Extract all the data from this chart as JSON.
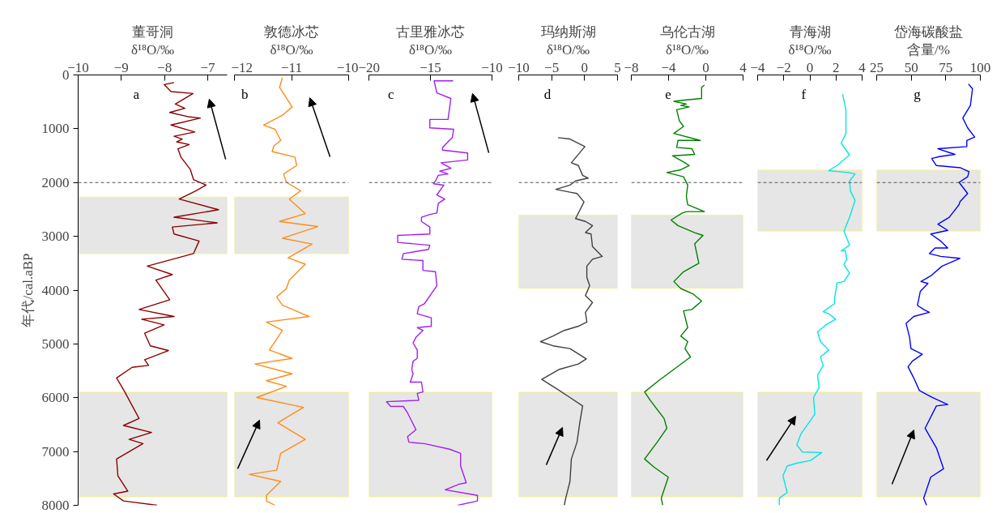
{
  "chart_data": [
    {
      "type": "line",
      "title": "董哥洞",
      "xlabel": "δ¹⁸O/‰",
      "ylabel": "年代/cal.aBP",
      "xlim": [
        -10,
        -6.55
      ],
      "xticks": [
        -10,
        -9,
        -8,
        -7
      ],
      "ylim": [
        8000,
        0
      ],
      "yticks": [
        0,
        1000,
        2000,
        3000,
        4000,
        5000,
        6000,
        7000,
        8000
      ],
      "annotations": [
        "a"
      ],
      "series": [
        {
          "color": "#8b0000",
          "x": [
            -7.78,
            -8.01,
            -7.85,
            -7.34,
            -7.75,
            -7.53,
            -7.88,
            -7.46,
            -7.17,
            -7.85,
            -7.3,
            -7.78,
            -7.59,
            -7.72,
            -7.43,
            -7.69,
            -7.62,
            -7.4,
            -7.33,
            -7.04,
            -7.27,
            -7.66,
            -6.75,
            -7.78,
            -6.78,
            -7.82,
            -7.78,
            -7.2,
            -7.33,
            -8.4,
            -7.82,
            -8.2,
            -7.88,
            -8.59,
            -7.78,
            -8.53,
            -8.01,
            -8.46,
            -8.33,
            -7.91,
            -8.46,
            -8.37,
            -8.75,
            -9.11,
            -8.92,
            -8.59,
            -8.95,
            -8.3,
            -8.82,
            -8.5,
            -9.11,
            -9.08,
            -8.85,
            -9.18,
            -8.95,
            -8.17
          ],
          "values": [
            141,
            178,
            308,
            344,
            541,
            619,
            697,
            775,
            801,
            931,
            1061,
            1139,
            1191,
            1243,
            1294,
            1372,
            1528,
            1762,
            1944,
            2048,
            2152,
            2308,
            2505,
            2645,
            2749,
            2827,
            2957,
            3087,
            3321,
            3554,
            3710,
            3814,
            4178,
            4360,
            4490,
            4541,
            4645,
            4801,
            5035,
            5123,
            5295,
            5399,
            5435,
            5632,
            5892,
            6386,
            6516,
            6646,
            6775,
            6853,
            7139,
            7451,
            7737,
            7789,
            7919,
            8000
          ]
        }
      ],
      "bands": [
        {
          "axis": "y",
          "from": 2270,
          "to": 3320,
          "color": "#e6e6e6"
        },
        {
          "axis": "y",
          "from": 5900,
          "to": 7840,
          "color": "#e6e6e6"
        }
      ],
      "ref_lines": [
        {
          "axis": "y",
          "value": 2000,
          "color": "#555555",
          "line_style": "dashed"
        }
      ]
    },
    {
      "type": "line",
      "title": "敦德冰芯",
      "xlabel": "δ¹⁸O/‰",
      "xlim": [
        -12,
        -10
      ],
      "xticks": [
        -12,
        -11,
        -10
      ],
      "ylim": [
        8000,
        0
      ],
      "tick_labels": "x",
      "annotations": [
        "b"
      ],
      "series": [
        {
          "color": "#ff8c1a",
          "x": [
            -11.16,
            -11.21,
            -10.99,
            -11.16,
            -11.49,
            -11.29,
            -11.19,
            -11.31,
            -11.34,
            -10.94,
            -10.91,
            -11.14,
            -11.09,
            -10.84,
            -11.04,
            -10.76,
            -11.21,
            -10.54,
            -11.16,
            -10.64,
            -11.06,
            -10.76,
            -11.04,
            -11.09,
            -11.26,
            -11.16,
            -10.69,
            -11.44,
            -11.16,
            -11.29,
            -11.39,
            -10.99,
            -11.64,
            -10.99,
            -11.44,
            -11.09,
            -11.61,
            -10.79,
            -11.24,
            -10.76,
            -11.19,
            -11.26,
            -11.74,
            -11.19,
            -11.44,
            -11.44,
            -11.29
          ],
          "values": [
            48,
            230,
            593,
            749,
            931,
            1009,
            1217,
            1321,
            1424,
            1528,
            1684,
            1840,
            1996,
            2152,
            2308,
            2577,
            2723,
            2818,
            3035,
            3143,
            3399,
            3518,
            3814,
            3970,
            4126,
            4282,
            4490,
            4593,
            4749,
            4957,
            5113,
            5269,
            5373,
            5555,
            5684,
            5788,
            5996,
            6178,
            6464,
            6775,
            7035,
            7347,
            7425,
            7555,
            7815,
            7919,
            8000
          ]
        }
      ],
      "bands": [
        {
          "axis": "y",
          "from": 2270,
          "to": 3320,
          "color": "#e6e6e6"
        },
        {
          "axis": "y",
          "from": 5900,
          "to": 7840,
          "color": "#e6e6e6"
        }
      ],
      "ref_lines": [
        {
          "axis": "y",
          "value": 2000,
          "color": "#555555",
          "line_style": "dashed"
        }
      ]
    },
    {
      "type": "line",
      "title": "古里雅冰芯",
      "xlabel": "δ¹⁸O/‰",
      "xlim": [
        -20,
        -10
      ],
      "xticks": [
        -20,
        -15,
        -10
      ],
      "ylim": [
        8000,
        0
      ],
      "tick_labels": "x",
      "annotations": [
        "c"
      ],
      "series": [
        {
          "color": "#a020f0",
          "x": [
            -13.16,
            -14.7,
            -14.48,
            -13.34,
            -13.57,
            -15.05,
            -15.05,
            -13.11,
            -13.23,
            -14.02,
            -14.02,
            -11.98,
            -11.98,
            -14.14,
            -13.34,
            -14.25,
            -13.57,
            -14.36,
            -14.59,
            -14.75,
            -13.91,
            -14.48,
            -13.84,
            -14.36,
            -14.48,
            -15.05,
            -15.73,
            -15.73,
            -15.05,
            -15.05,
            -17.66,
            -17.66,
            -15.05,
            -15.16,
            -17.2,
            -17.32,
            -15.61,
            -15.61,
            -14.59,
            -14.48,
            -15.5,
            -15.95,
            -16.07,
            -14.93,
            -14.93,
            -16.07,
            -15.61,
            -16.18,
            -16.41,
            -16.07,
            -16.07,
            -16.41,
            -16.52,
            -16.41,
            -16.64,
            -15.73,
            -15.61,
            -16.07,
            -15.95,
            -18.57,
            -18.23,
            -17.2,
            -16.86,
            -16.18,
            -16.86,
            -16.75,
            -15.5,
            -13.45,
            -12.55,
            -12.55,
            -12.09,
            -12.66,
            -13.8,
            -11.18,
            -11.18,
            -12.77
          ],
          "values": [
            110,
            110,
            334,
            437,
            827,
            827,
            983,
            1009,
            1165,
            1347,
            1398,
            1450,
            1580,
            1632,
            1736,
            1788,
            1840,
            1866,
            1970,
            2022,
            2048,
            2230,
            2308,
            2386,
            2567,
            2593,
            2645,
            2723,
            2827,
            2957,
            2983,
            3113,
            3165,
            3243,
            3321,
            3425,
            3451,
            3632,
            3658,
            3918,
            4256,
            4308,
            4438,
            4515,
            4671,
            4697,
            4749,
            4879,
            4983,
            5113,
            5269,
            5321,
            5477,
            5555,
            5710,
            5710,
            5892,
            5918,
            6048,
            6074,
            6162,
            6162,
            6282,
            6594,
            6724,
            6827,
            6853,
            6957,
            7035,
            7269,
            7581,
            7607,
            7711,
            7815,
            7919,
            8000
          ]
        }
      ],
      "bands": [
        {
          "axis": "y",
          "from": 5900,
          "to": 7840,
          "color": "#e6e6e6"
        }
      ],
      "ref_lines": [
        {
          "axis": "y",
          "value": 2000,
          "color": "#555555",
          "line_style": "dashed"
        }
      ]
    },
    {
      "type": "line",
      "title": "玛纳斯湖",
      "xlabel": "δ¹⁸O/‰",
      "xlim": [
        -10,
        5
      ],
      "xticks": [
        -10,
        -5,
        0,
        5
      ],
      "ylim": [
        8000,
        0
      ],
      "tick_labels": "x",
      "annotations": [
        "d"
      ],
      "series": [
        {
          "color": "#404040",
          "x": [
            -4.02,
            -2.22,
            0.04,
            -2.01,
            -0.94,
            -0.3,
            0.56,
            -1.37,
            -2.22,
            -4.36,
            -2.22,
            -1.15,
            -0.09,
            -1.37,
            0.13,
            1.2,
            0.13,
            0.98,
            1.2,
            2.69,
            1.2,
            0.34,
            0.34,
            0.77,
            0.13,
            1.2,
            0.13,
            0.34,
            -0.94,
            -3.08,
            -4.79,
            -6.71,
            -4.79,
            -2.22,
            0.26,
            -0.94,
            -3.93,
            -6.5,
            -4.15,
            -2.22,
            -0.3,
            -0.73,
            -1.15,
            -2.01,
            -2.22,
            -2.86,
            -3.08
          ],
          "values": [
            1165,
            1191,
            1331,
            1632,
            1684,
            1866,
            1918,
            1970,
            2048,
            2126,
            2178,
            2204,
            2360,
            2671,
            2723,
            2801,
            2931,
            2957,
            3191,
            3373,
            3425,
            3554,
            3762,
            3918,
            4100,
            4230,
            4412,
            4593,
            4671,
            4749,
            4853,
            4957,
            5035,
            5087,
            5279,
            5373,
            5477,
            5658,
            5840,
            5996,
            6152,
            6464,
            6827,
            7139,
            7555,
            7867,
            8000
          ]
        }
      ],
      "bands": [
        {
          "axis": "y",
          "from": 2610,
          "to": 3960,
          "color": "#e6e6e6"
        },
        {
          "axis": "y",
          "from": 5900,
          "to": 7840,
          "color": "#e6e6e6"
        }
      ],
      "ref_lines": [
        {
          "axis": "y",
          "value": 2000,
          "color": "#555555",
          "line_style": "dashed"
        }
      ]
    },
    {
      "type": "line",
      "title": "乌伦古湖",
      "xlabel": "δ¹⁸O/‰",
      "xlim": [
        -8,
        4
      ],
      "xticks": [
        -8,
        -4,
        0,
        4
      ],
      "ylim": [
        8000,
        0
      ],
      "tick_labels": "x",
      "annotations": [
        "e"
      ],
      "series": [
        {
          "color": "#008000",
          "x": [
            -0.15,
            -0.45,
            -0.45,
            -2.09,
            -3.43,
            -2.09,
            -2.69,
            -1.79,
            -3.13,
            -2.84,
            -2.39,
            -3.43,
            -0.6,
            -2.99,
            -3.13,
            -1.49,
            -1.19,
            -3.58,
            -2.24,
            -1.79,
            -2.69,
            -4.18,
            -2.39,
            -1.94,
            -2.09,
            -1.94,
            -0.15,
            -2.09,
            -2.54,
            -3.73,
            -2.99,
            -1.19,
            -0.3,
            -1.19,
            -0.75,
            -2.39,
            -3.43,
            -2.69,
            -1.34,
            -0.45,
            -1.49,
            -2.39,
            -1.94,
            -2.69,
            -1.94,
            -2.24,
            -1.64,
            -5.07,
            -6.57,
            -5.97,
            -4.48,
            -4.18,
            -5.22,
            -6.57,
            -5.52,
            -4.03,
            -4.78,
            -4.63
          ],
          "values": [
            188,
            230,
            437,
            463,
            489,
            541,
            567,
            593,
            645,
            853,
            957,
            1087,
            1217,
            1217,
            1347,
            1372,
            1476,
            1502,
            1632,
            1684,
            1762,
            1814,
            1892,
            2048,
            2256,
            2411,
            2541,
            2541,
            2567,
            2697,
            2801,
            2931,
            2983,
            3139,
            3502,
            3658,
            3840,
            3970,
            4074,
            4204,
            4360,
            4386,
            4697,
            4853,
            4957,
            5087,
            5243,
            5684,
            5892,
            6048,
            6386,
            6568,
            6827,
            7139,
            7295,
            7477,
            7867,
            8000
          ]
        }
      ],
      "bands": [
        {
          "axis": "y",
          "from": 2610,
          "to": 3960,
          "color": "#e6e6e6"
        },
        {
          "axis": "y",
          "from": 5900,
          "to": 7840,
          "color": "#e6e6e6"
        }
      ],
      "ref_lines": [
        {
          "axis": "y",
          "value": 2000,
          "color": "#555555",
          "line_style": "dashed"
        }
      ]
    },
    {
      "type": "line",
      "title": "青海湖",
      "xlabel": "δ¹⁸O/‰",
      "xlim": [
        -4,
        4
      ],
      "xticks": [
        -4,
        -2,
        0,
        2,
        4
      ],
      "ylim": [
        8000,
        0
      ],
      "tick_labels": "x",
      "annotations": [
        "f"
      ],
      "series": [
        {
          "color": "#00e5e5",
          "x": [
            2.51,
            2.76,
            2.76,
            2.4,
            3.04,
            2.08,
            1.44,
            2.29,
            2.93,
            3.46,
            3.04,
            3.1,
            3.46,
            3.04,
            2.61,
            3.04,
            2.4,
            2.72,
            2.82,
            2.61,
            3.04,
            2.61,
            2.08,
            1.91,
            1.87,
            1.02,
            1.44,
            1.97,
            1.23,
            0.59,
            0.81,
            1.44,
            0.81,
            1.02,
            0.59,
            0.7,
            0.28,
            0.38,
            -0.68,
            -1.0,
            -0.57,
            0.91,
            0.06,
            -1.0,
            -1.74,
            -2.06,
            -1.74,
            -2.34,
            -2.34
          ],
          "values": [
            360,
            645,
            1087,
            1269,
            1488,
            1684,
            1778,
            1798,
            1814,
            1840,
            1970,
            2152,
            2333,
            2645,
            2905,
            3165,
            3269,
            3269,
            3425,
            3528,
            3684,
            3840,
            3866,
            4126,
            4256,
            4401,
            4438,
            4541,
            4645,
            4775,
            4957,
            5113,
            5243,
            5399,
            5580,
            5814,
            5996,
            6308,
            6672,
            6879,
            7009,
            7019,
            7165,
            7217,
            7269,
            7451,
            7763,
            7867,
            8000
          ]
        }
      ],
      "bands": [
        {
          "axis": "y",
          "from": 1770,
          "to": 2900,
          "color": "#e6e6e6"
        },
        {
          "axis": "y",
          "from": 5900,
          "to": 7840,
          "color": "#e6e6e6"
        }
      ],
      "ref_lines": [
        {
          "axis": "y",
          "value": 2000,
          "color": "#555555",
          "line_style": "dashed"
        }
      ]
    },
    {
      "type": "line",
      "title": "岱海碳酸盐",
      "xlabel": "含量/%",
      "xlim": [
        25,
        100
      ],
      "xticks": [
        25,
        50,
        75,
        100
      ],
      "ylim": [
        8000,
        0
      ],
      "tick_labels": "x",
      "annotations": [
        "g"
      ],
      "series": [
        {
          "color": "#0000ff",
          "x": [
            91.4,
            94.3,
            92.8,
            87.3,
            90.8,
            95.9,
            90.2,
            90.2,
            69.3,
            81.6,
            70.3,
            64.8,
            68.2,
            85.7,
            91.8,
            90.8,
            84.6,
            90.8,
            85.2,
            84.6,
            77.5,
            69.3,
            76.4,
            64.1,
            71.3,
            76.4,
            67.2,
            63.1,
            71.3,
            85.2,
            72.3,
            64.1,
            57.0,
            62.1,
            56.6,
            54.5,
            59.0,
            63.1,
            51.8,
            46.3,
            48.8,
            49.8,
            58.0,
            50.8,
            47.7,
            51.8,
            55.9,
            65.2,
            76.4,
            68.2,
            60.0,
            68.2,
            73.4,
            64.1,
            59.0,
            61.1
          ],
          "values": [
            167,
            256,
            567,
            801,
            983,
            1154,
            1217,
            1331,
            1372,
            1476,
            1518,
            1554,
            1684,
            1726,
            1798,
            1892,
            1996,
            2204,
            2359,
            2411,
            2645,
            2775,
            2889,
            2957,
            3087,
            3217,
            3217,
            3321,
            3373,
            3409,
            3554,
            3736,
            3840,
            3876,
            4022,
            4282,
            4360,
            4412,
            4490,
            4619,
            4879,
            5087,
            5191,
            5321,
            5425,
            5632,
            5866,
            5996,
            6126,
            6152,
            6568,
            6931,
            7321,
            7477,
            7867,
            8000
          ]
        }
      ],
      "bands": [
        {
          "axis": "y",
          "from": 1770,
          "to": 2900,
          "color": "#e6e6e6"
        },
        {
          "axis": "y",
          "from": 5900,
          "to": 7840,
          "color": "#e6e6e6"
        }
      ],
      "ref_lines": [
        {
          "axis": "y",
          "value": 2000,
          "color": "#555555",
          "line_style": "dashed"
        }
      ]
    }
  ]
}
